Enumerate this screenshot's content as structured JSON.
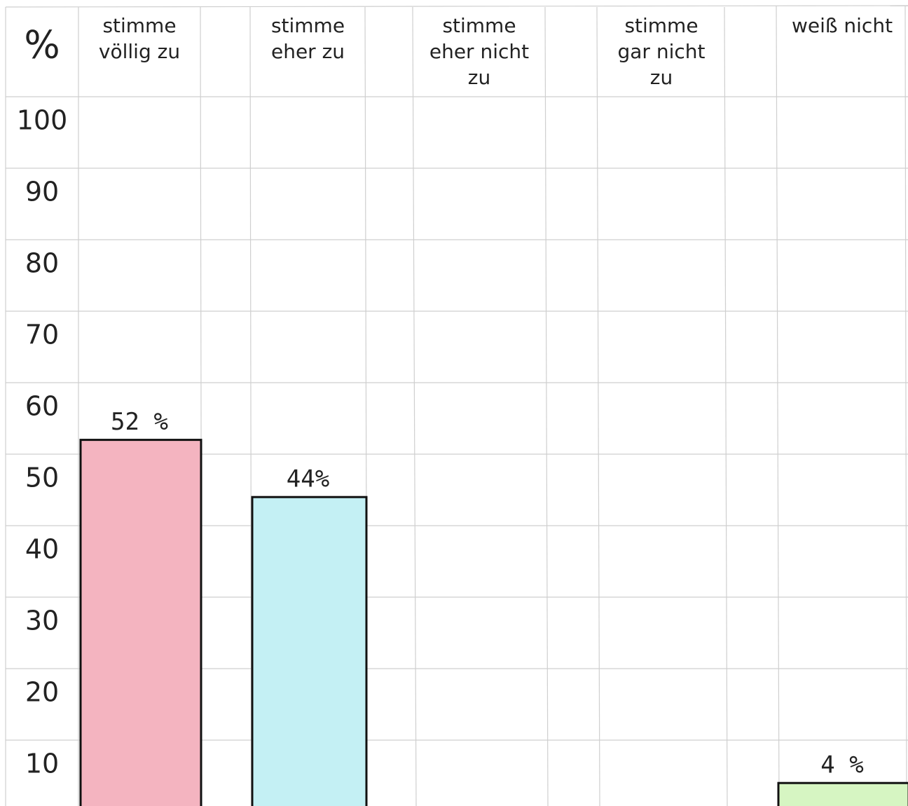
{
  "chart_data": {
    "type": "bar",
    "y_label": "%",
    "categories": [
      "stimme völlig zu",
      "stimme eher zu",
      "stimme eher nicht zu",
      "stimme gar nicht zu",
      "weiß nicht"
    ],
    "values": [
      52,
      44,
      null,
      null,
      4
    ],
    "value_labels": [
      "52 %",
      "44%",
      null,
      null,
      "4 %"
    ],
    "colors": [
      "#f4b4c0",
      "#c4f0f4",
      null,
      null,
      "#d6f5c2"
    ],
    "ylim": [
      0,
      100
    ],
    "yticks": [
      10,
      20,
      30,
      40,
      50,
      60,
      70,
      80,
      90,
      100
    ],
    "grid": true
  }
}
